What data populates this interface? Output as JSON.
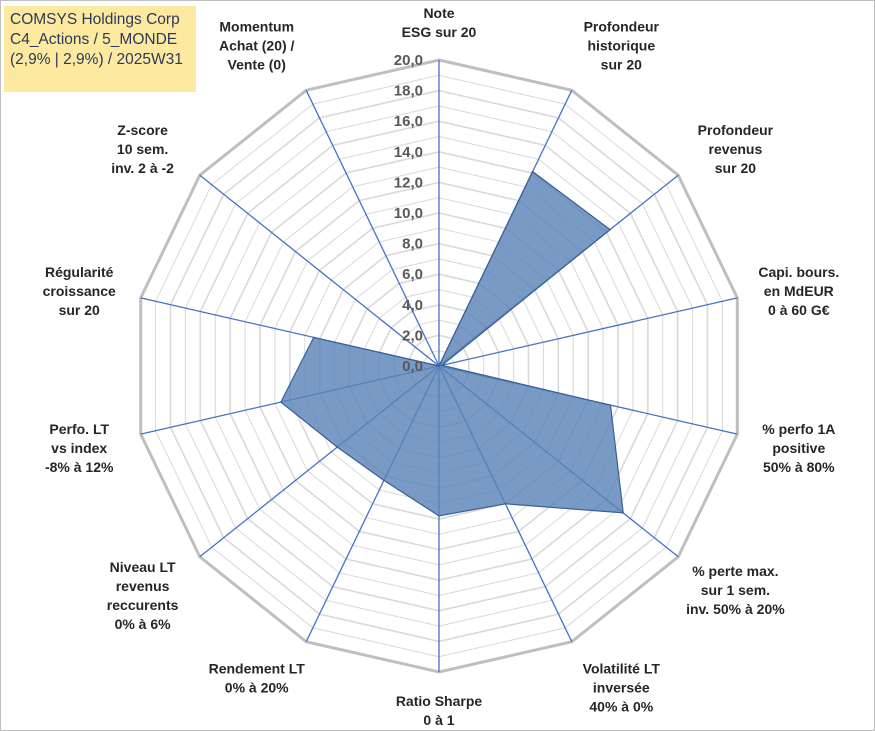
{
  "title": {
    "lines": [
      "COMSYS Holdings Corp",
      "C4_Actions / 5_MONDE",
      "(2,9% | 2,9%) / 2025W31"
    ]
  },
  "chart_data": {
    "type": "radar",
    "axes": [
      {
        "lines": [
          "Note",
          "ESG sur 20"
        ]
      },
      {
        "lines": [
          "Profondeur",
          "historique",
          "sur 20"
        ]
      },
      {
        "lines": [
          "Profondeur",
          "revenus",
          "sur 20"
        ]
      },
      {
        "lines": [
          "Capi. bours.",
          "en MdEUR",
          "0 à 60 G€"
        ]
      },
      {
        "lines": [
          "% perfo 1A",
          "positive",
          "50% à 80%"
        ]
      },
      {
        "lines": [
          "% perte max.",
          "sur 1 sem.",
          "inv. 50% à 20%"
        ]
      },
      {
        "lines": [
          "Volatilité LT",
          "inversée",
          "40% à 0%"
        ]
      },
      {
        "lines": [
          "Ratio Sharpe",
          "0 à 1"
        ]
      },
      {
        "lines": [
          "Rendement LT",
          "0% à 20%"
        ]
      },
      {
        "lines": [
          "Niveau LT",
          "revenus",
          "reccurents",
          "0% à 6%"
        ]
      },
      {
        "lines": [
          "Perfo. LT",
          "vs index",
          "-8% à 12%"
        ]
      },
      {
        "lines": [
          "Régularité",
          "croissance",
          "sur 20"
        ]
      },
      {
        "lines": [
          "Z-score",
          "10 sem.",
          "inv. 2 à -2"
        ]
      },
      {
        "lines": [
          "Momentum",
          "Achat (20) /",
          "Vente (0)"
        ]
      }
    ],
    "values": [
      0,
      14.1,
      14.3,
      0.2,
      11.5,
      15.4,
      10.0,
      9.8,
      8.3,
      8.5,
      10.6,
      8.4,
      0,
      0
    ],
    "range": [
      0,
      20
    ],
    "ticks": [
      "0,0",
      "2,0",
      "4,0",
      "6,0",
      "8,0",
      "10,0",
      "12,0",
      "14,0",
      "16,0",
      "18,0",
      "20,0"
    ],
    "grid": true,
    "colors": {
      "fill": "#5a84b8",
      "stroke": "#3b5f93",
      "axis": "#4472c4",
      "grid": "#d9d9d9",
      "outer": "#bfbfbf"
    }
  }
}
